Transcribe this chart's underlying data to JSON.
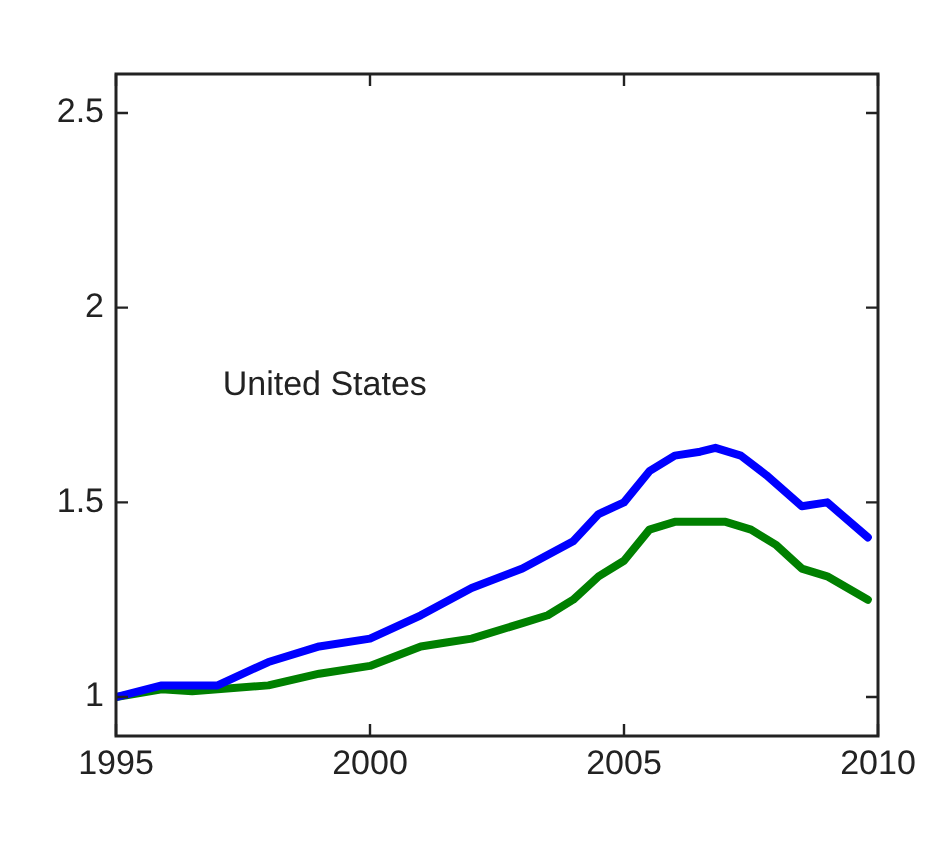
{
  "chart_data": {
    "type": "line",
    "annotations": [
      "United States"
    ],
    "xlim": [
      1995,
      2010
    ],
    "xticks": [
      1995,
      2000,
      2005,
      2010
    ],
    "ylim": [
      0.9,
      2.6
    ],
    "yticks": [
      1,
      1.5,
      2,
      2.5
    ],
    "grid": false,
    "legend": false,
    "marker": "none",
    "line_style": "solid",
    "series": [
      {
        "color": "#0000ff",
        "x": [
          1995,
          1995.9,
          1997,
          1998,
          1999,
          2000,
          2001,
          2002,
          2003,
          2004,
          2004.5,
          2005,
          2005.5,
          2006,
          2006.5,
          2006.8,
          2007.3,
          2007.8,
          2008.5,
          2009,
          2009.8
        ],
        "values": [
          1.0,
          1.03,
          1.03,
          1.09,
          1.13,
          1.15,
          1.21,
          1.28,
          1.33,
          1.4,
          1.47,
          1.5,
          1.58,
          1.62,
          1.63,
          1.64,
          1.62,
          1.57,
          1.49,
          1.5,
          1.41
        ]
      },
      {
        "color": "#008000",
        "x": [
          1995,
          1995.9,
          1996.5,
          1997,
          1998,
          1999,
          2000,
          2001,
          2001.5,
          2002,
          2003,
          2003.5,
          2004,
          2004.5,
          2005,
          2005.5,
          2006,
          2007,
          2007.5,
          2008,
          2008.5,
          2009,
          2009.8
        ],
        "values": [
          1.0,
          1.02,
          1.015,
          1.02,
          1.03,
          1.06,
          1.08,
          1.13,
          1.14,
          1.15,
          1.19,
          1.21,
          1.25,
          1.31,
          1.35,
          1.43,
          1.45,
          1.45,
          1.43,
          1.39,
          1.33,
          1.31,
          1.25
        ]
      }
    ]
  }
}
